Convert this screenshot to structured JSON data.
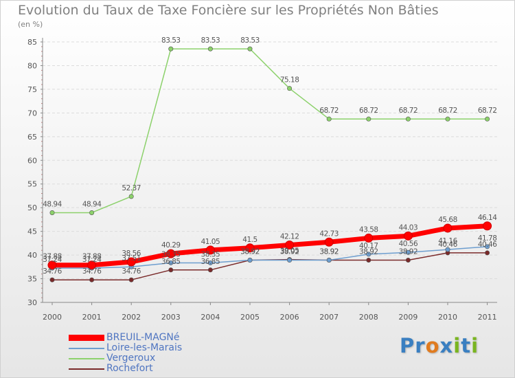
{
  "title": "Evolution du Taux de Taxe Foncière sur les Propriétés Non Bâties",
  "unit": "(en %)",
  "logo": {
    "letters": [
      "P",
      "r",
      "o",
      "x",
      "i",
      "t",
      "i"
    ],
    "colors": [
      "#3a7fc1",
      "#3a7fc1",
      "#e07b1f",
      "#3a7fc1",
      "#7ab520",
      "#3a7fc1",
      "#7ab520"
    ]
  },
  "chart_data": {
    "type": "line",
    "x": [
      "2000",
      "2001",
      "2002",
      "2003",
      "2004",
      "2005",
      "2006",
      "2007",
      "2008",
      "2009",
      "2010",
      "2011"
    ],
    "ylim": [
      30,
      85
    ],
    "yticks": [
      30,
      35,
      40,
      45,
      50,
      55,
      60,
      65,
      70,
      75,
      80,
      85
    ],
    "grid": true,
    "legend_position": "bottom-left",
    "series": [
      {
        "name": "BREUIL-MAGNé",
        "color": "#ff0000",
        "width": 7,
        "labels": [
          "37.88",
          "37.88",
          "38.56",
          "40.29",
          "41.05",
          "41.5",
          "42.12",
          "42.73",
          "43.58",
          "44.03",
          "45.68",
          "46.14"
        ],
        "values": [
          37.88,
          37.88,
          38.56,
          40.29,
          41.05,
          41.5,
          42.12,
          42.73,
          43.58,
          44.03,
          45.68,
          46.14
        ]
      },
      {
        "name": "Loire-les-Marais",
        "color": "#6d9ecf",
        "width": 1.5,
        "labels": [
          "37.24",
          "37.24",
          "37.51",
          "38.35",
          "38.35",
          "38.92",
          "38.92",
          "38.92",
          "40.17",
          "40.56",
          "41.16",
          "41.78"
        ],
        "values": [
          37.24,
          37.24,
          37.51,
          38.35,
          38.35,
          38.92,
          38.92,
          38.92,
          40.17,
          40.56,
          41.16,
          41.78
        ]
      },
      {
        "name": "Vergeroux",
        "color": "#8cd16b",
        "width": 1.5,
        "labels": [
          "48.94",
          "48.94",
          "52.37",
          "83.53",
          "83.53",
          "83.53",
          "75.18",
          "68.72",
          "68.72",
          "68.72",
          "68.72",
          "68.72"
        ],
        "values": [
          48.94,
          48.94,
          52.37,
          83.53,
          83.53,
          83.53,
          75.18,
          68.72,
          68.72,
          68.72,
          68.72,
          68.72
        ]
      },
      {
        "name": "Rochefort",
        "color": "#7a2a2a",
        "width": 1.5,
        "labels": [
          "34.76",
          "34.76",
          "34.76",
          "36.85",
          "36.85",
          "38.92",
          "39.05",
          "38.92",
          "38.92",
          "38.92",
          "40.46",
          "40.46"
        ],
        "values": [
          34.76,
          34.76,
          34.76,
          36.85,
          36.85,
          38.92,
          39.05,
          38.92,
          38.92,
          38.92,
          40.46,
          40.46
        ]
      }
    ]
  }
}
